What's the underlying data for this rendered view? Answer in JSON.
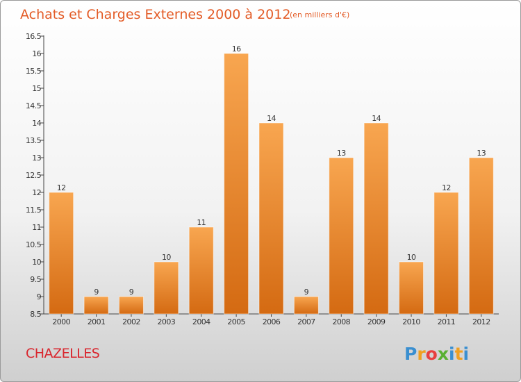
{
  "chart_data": {
    "type": "bar",
    "title": "Achats et Charges Externes 2000 à 2012",
    "subtitle": "(en milliers d'€)",
    "categories": [
      "2000",
      "2001",
      "2002",
      "2003",
      "2004",
      "2005",
      "2006",
      "2007",
      "2008",
      "2009",
      "2010",
      "2011",
      "2012"
    ],
    "values": [
      12,
      9,
      9,
      10,
      11,
      16,
      14,
      9,
      13,
      14,
      10,
      12,
      13
    ],
    "value_labels": [
      "12",
      "9",
      "9",
      "10",
      "11",
      "16",
      "14",
      "9",
      "13",
      "14",
      "10",
      "12",
      "13"
    ],
    "yticks": [
      "8.5",
      "9",
      "9.5",
      "10",
      "10.5",
      "11",
      "11.5",
      "12",
      "12.5",
      "13",
      "13.5",
      "14",
      "14.5",
      "15",
      "15.5",
      "16",
      "16.5"
    ],
    "ylim": [
      8.5,
      16.5
    ],
    "grid": false,
    "legend": "none",
    "bar_color_top": "#f8a650",
    "bar_color_bottom": "#d46a12"
  },
  "commune": "CHAZELLES",
  "brand": {
    "letters": [
      "P",
      "r",
      "o",
      "x",
      "i",
      "t",
      "i"
    ],
    "colors": [
      "#3a8fd0",
      "#f0a020",
      "#e84040",
      "#58b030",
      "#3a8fd0",
      "#f0a020",
      "#3a8fd0"
    ]
  }
}
